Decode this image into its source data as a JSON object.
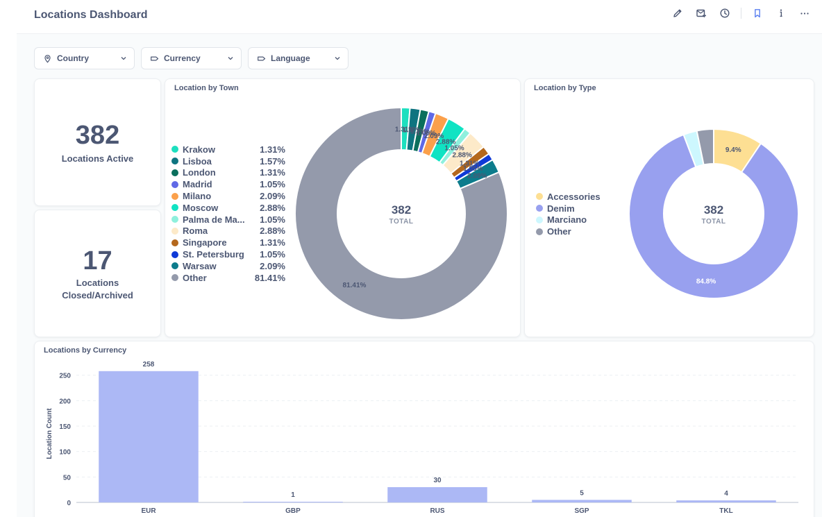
{
  "header": {
    "title": "Locations Dashboard",
    "icons": [
      "pencil-icon",
      "subscribe-icon",
      "history-icon",
      "bookmark-icon",
      "info-icon",
      "more-icon"
    ]
  },
  "filters": [
    {
      "label": "Country",
      "icon": "location-pin-icon"
    },
    {
      "label": "Currency",
      "icon": "tag-icon"
    },
    {
      "label": "Language",
      "icon": "tag-icon"
    }
  ],
  "kpis": {
    "active": {
      "value": "382",
      "label": "Locations Active"
    },
    "closed": {
      "value": "17",
      "label_line1": "Locations",
      "label_line2": "Closed/Archived"
    }
  },
  "town_chart": {
    "title": "Location by Town",
    "center_value": "382",
    "center_label": "TOTAL"
  },
  "type_chart": {
    "title": "Location by Type",
    "center_value": "382",
    "center_label": "TOTAL"
  },
  "currency_chart": {
    "title": "Locations by Currency"
  },
  "chart_data": [
    {
      "type": "pie",
      "title": "Location by Town",
      "total": 382,
      "slices": [
        {
          "name": "Krakow",
          "pct": 1.31,
          "label": "1.31%",
          "color": "#1ddfbf"
        },
        {
          "name": "Lisboa",
          "pct": 1.57,
          "label": "1.57%",
          "color": "#0e7480"
        },
        {
          "name": "London",
          "pct": 1.31,
          "label": "1.31%",
          "color": "#0b6f5d"
        },
        {
          "name": "Madrid",
          "pct": 1.05,
          "label": "1.05%",
          "color": "#6069e6"
        },
        {
          "name": "Milano",
          "pct": 2.09,
          "label": "2.09%",
          "color": "#fba04b"
        },
        {
          "name": "Moscow",
          "pct": 2.88,
          "label": "2.88%",
          "color": "#10e3c3"
        },
        {
          "name": "Palma de Ma...",
          "pct": 1.05,
          "label": "1.05%",
          "color": "#8ff0dd"
        },
        {
          "name": "Roma",
          "pct": 2.88,
          "label": "2.88%",
          "color": "#fdeac9"
        },
        {
          "name": "Singapore",
          "pct": 1.31,
          "label": "1.31%",
          "color": "#b4681d"
        },
        {
          "name": "St. Petersburg",
          "pct": 1.05,
          "label": "1.05%",
          "color": "#0f3ad7"
        },
        {
          "name": "Warsaw",
          "pct": 2.09,
          "label": "2.09%",
          "color": "#0d7c8c"
        },
        {
          "name": "Other",
          "pct": 81.41,
          "label": "81.41%",
          "color": "#949aab"
        }
      ]
    },
    {
      "type": "pie",
      "title": "Location by Type",
      "total": 382,
      "slices": [
        {
          "name": "Accessories",
          "pct": 9.4,
          "label": "9.4%",
          "color": "#fddf93",
          "label_color": "#4c5773"
        },
        {
          "name": "Denim",
          "pct": 84.8,
          "label": "84.8%",
          "color": "#98a0ef",
          "label_color": "#ffffff"
        },
        {
          "name": "Marciano",
          "pct": 2.6,
          "label": "",
          "color": "#cdf7fe",
          "label_color": "#4c5773"
        },
        {
          "name": "Other",
          "pct": 3.2,
          "label": "",
          "color": "#949aab",
          "label_color": "#4c5773"
        }
      ]
    },
    {
      "type": "bar",
      "title": "Locations by Currency",
      "categories": [
        "EUR",
        "GBP",
        "RUS",
        "SGP",
        "TKL"
      ],
      "values": [
        258,
        1,
        30,
        5,
        4
      ],
      "value_labels": [
        "258",
        "1",
        "30",
        "5",
        "4"
      ],
      "ylabel": "Location Count",
      "xlabel": "",
      "ylim": [
        0,
        270
      ],
      "yticks": [
        0,
        50,
        100,
        150,
        200,
        250
      ],
      "ytick_labels": [
        "0",
        "50",
        "100",
        "150",
        "200",
        "250"
      ],
      "color": "#acb8f5"
    }
  ]
}
